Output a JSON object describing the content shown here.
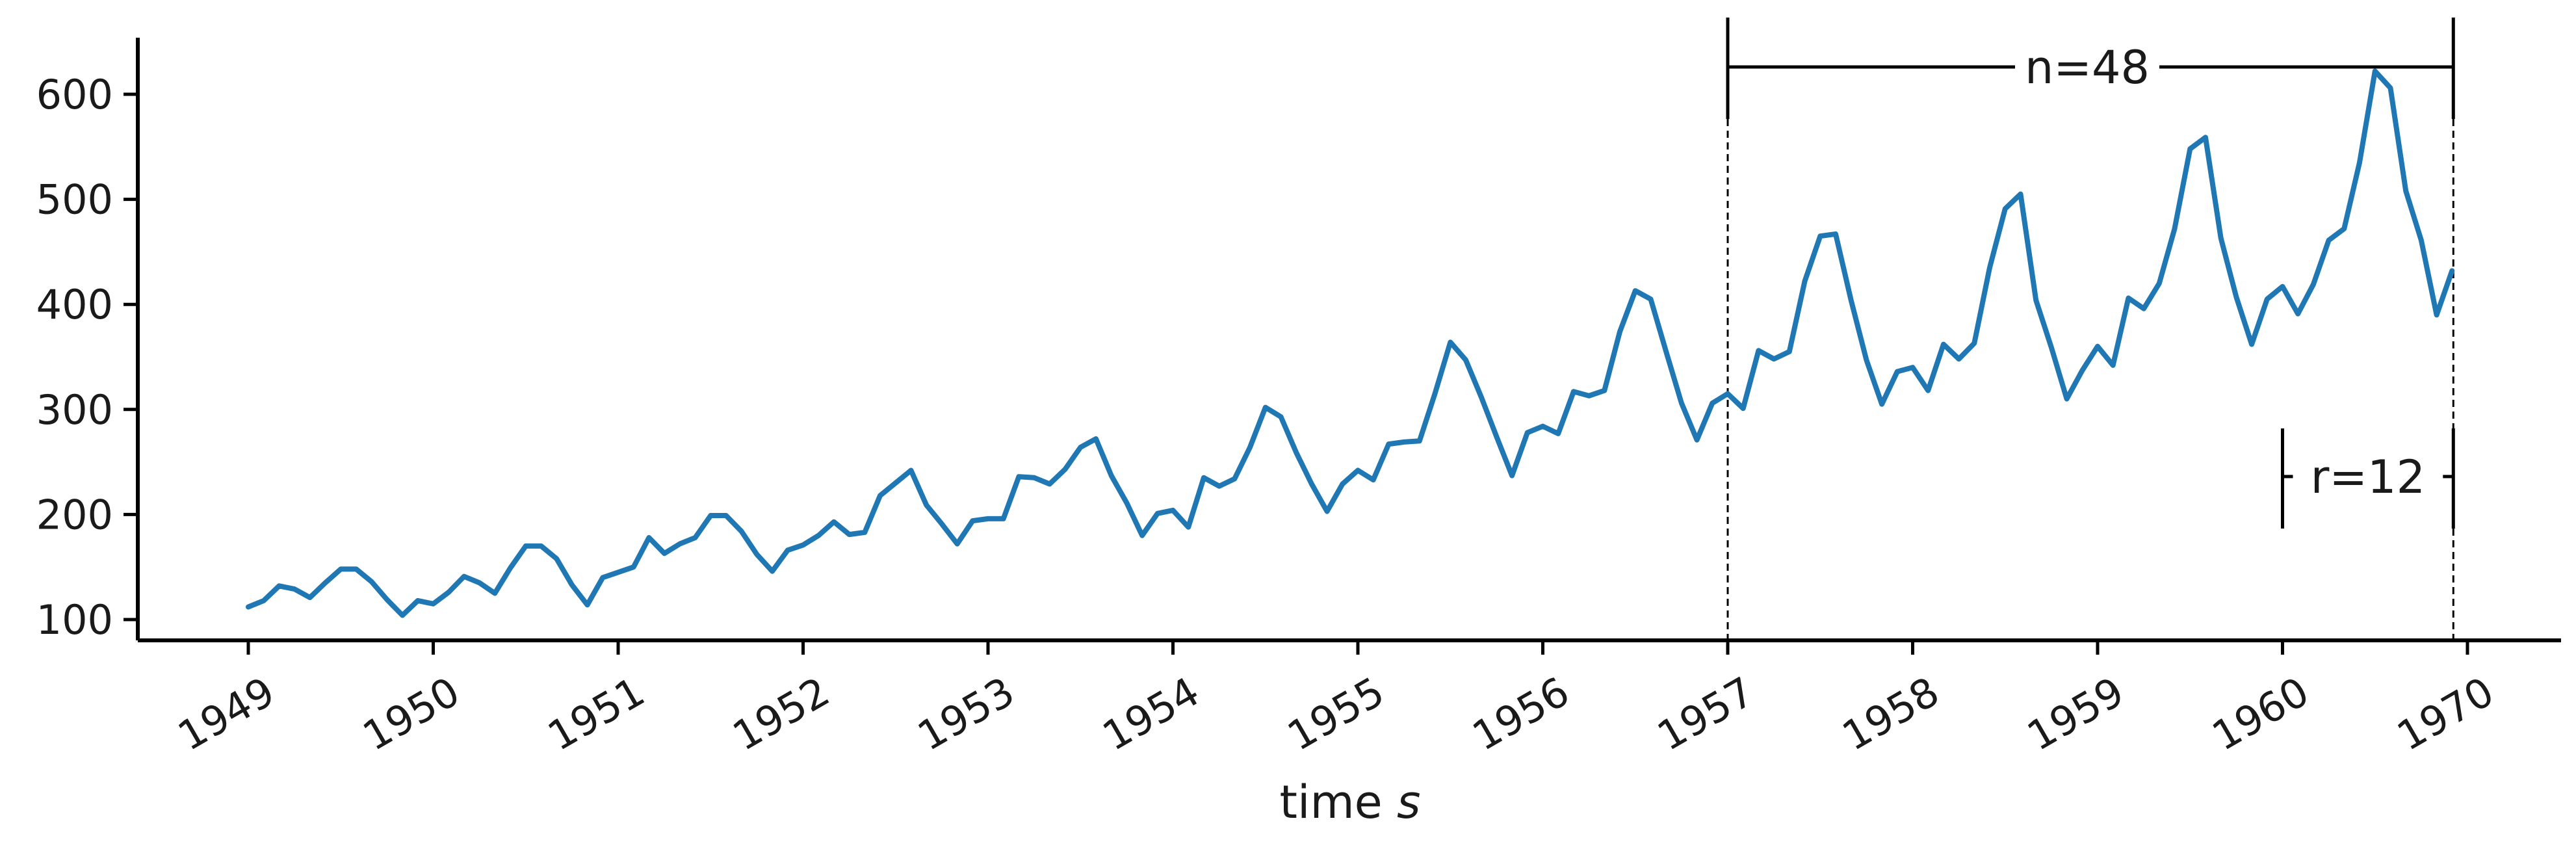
{
  "chart_data": {
    "type": "line",
    "xlabel": "time s",
    "xlabel_main": "time",
    "xlabel_italic": "s",
    "ylabel": "",
    "x_ticks": [
      "1949",
      "1950",
      "1951",
      "1952",
      "1953",
      "1954",
      "1955",
      "1956",
      "1957",
      "1958",
      "1959",
      "1960",
      "1970"
    ],
    "y_ticks": [
      "100",
      "200",
      "300",
      "400",
      "500",
      "600"
    ],
    "ylim": [
      78,
      650
    ],
    "grid": false,
    "x_start": "1949-01",
    "x_end": "1960-12",
    "series": [
      {
        "color": "#1f77b4",
        "values": [
          112,
          118,
          132,
          129,
          121,
          135,
          148,
          148,
          136,
          119,
          104,
          118,
          115,
          126,
          141,
          135,
          125,
          149,
          170,
          170,
          158,
          133,
          114,
          140,
          145,
          150,
          178,
          163,
          172,
          178,
          199,
          199,
          184,
          162,
          146,
          166,
          171,
          180,
          193,
          181,
          183,
          218,
          230,
          242,
          209,
          191,
          172,
          194,
          196,
          196,
          236,
          235,
          229,
          243,
          264,
          272,
          237,
          211,
          180,
          201,
          204,
          188,
          235,
          227,
          234,
          264,
          302,
          293,
          259,
          229,
          203,
          229,
          242,
          233,
          267,
          269,
          270,
          315,
          364,
          347,
          312,
          274,
          237,
          278,
          284,
          277,
          317,
          313,
          318,
          374,
          413,
          405,
          355,
          306,
          271,
          306,
          315,
          301,
          356,
          348,
          355,
          422,
          465,
          467,
          404,
          347,
          305,
          336,
          340,
          318,
          362,
          348,
          363,
          435,
          491,
          505,
          404,
          359,
          310,
          337,
          360,
          342,
          406,
          396,
          420,
          472,
          548,
          559,
          463,
          407,
          362,
          405,
          417,
          391,
          419,
          461,
          472,
          535,
          622,
          606,
          508,
          461,
          390,
          432
        ]
      }
    ],
    "annotations": {
      "n_label": "n=48",
      "r_label": "r=12",
      "window_start": "1957-01",
      "window_end": "1960-12",
      "r_start": "1960-01",
      "r_end": "1960-12"
    }
  }
}
